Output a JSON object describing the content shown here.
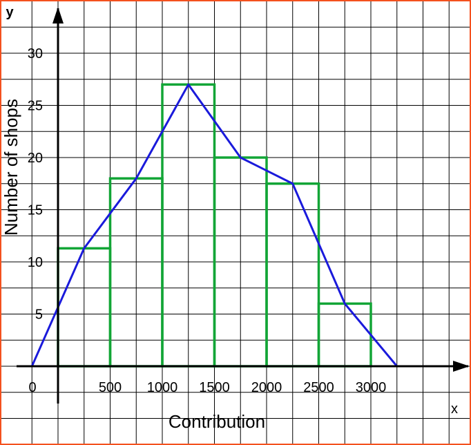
{
  "chart_data": {
    "type": "bar",
    "subtype": "histogram with frequency polygon",
    "title": "",
    "xlabel": "Contribution",
    "ylabel": "Number of shops",
    "x_axis_letter": "x",
    "y_axis_letter": "y",
    "origin_label": "0",
    "x_tick_labels": [
      "500",
      "1000",
      "1500",
      "2000",
      "2500",
      "3000"
    ],
    "y_tick_labels": [
      "5",
      "10",
      "15",
      "20",
      "25",
      "30"
    ],
    "xlim": [
      -250,
      3750
    ],
    "ylim": [
      -5,
      34
    ],
    "grid": true,
    "bins": [
      {
        "from": 0,
        "to": 500,
        "value": 11.3
      },
      {
        "from": 500,
        "to": 1000,
        "value": 18
      },
      {
        "from": 1000,
        "to": 1500,
        "value": 27
      },
      {
        "from": 1500,
        "to": 2000,
        "value": 20
      },
      {
        "from": 2000,
        "to": 2500,
        "value": 17.5
      },
      {
        "from": 2500,
        "to": 3000,
        "value": 6
      }
    ],
    "polygon_points": [
      {
        "x": -250,
        "y": 0
      },
      {
        "x": 250,
        "y": 11.3
      },
      {
        "x": 750,
        "y": 18
      },
      {
        "x": 1250,
        "y": 27
      },
      {
        "x": 1750,
        "y": 20
      },
      {
        "x": 2250,
        "y": 17.5
      },
      {
        "x": 2750,
        "y": 6
      },
      {
        "x": 3250,
        "y": 0
      }
    ],
    "colors": {
      "bars": "#12a536",
      "polygon": "#1a1adb",
      "grid": "#000000",
      "axes": "#000000",
      "border": "#f4511e"
    }
  }
}
